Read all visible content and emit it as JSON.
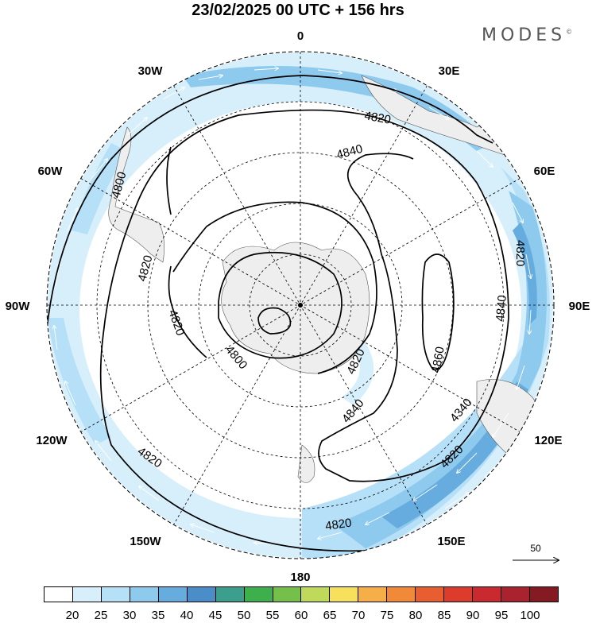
{
  "header": {
    "title": "23/02/2025  00 UTC  + 156 hrs",
    "brand": "MODES",
    "brand_mark": "©"
  },
  "longitude_labels": [
    "0",
    "30E",
    "60E",
    "90E",
    "120E",
    "150E",
    "180",
    "150W",
    "120W",
    "90W",
    "60W",
    "30W"
  ],
  "contour_labels": [
    "4820",
    "4840",
    "4800",
    "4800",
    "4820",
    "4820",
    "4820",
    "4840",
    "4820",
    "4860",
    "4840",
    "4340",
    "4820",
    "4820",
    "4820"
  ],
  "vector_scale": {
    "label": "50"
  },
  "colorbar": {
    "ticks": [
      "20",
      "25",
      "30",
      "35",
      "40",
      "45",
      "50",
      "55",
      "60",
      "65",
      "70",
      "75",
      "80",
      "85",
      "90",
      "95",
      "100"
    ],
    "colors": [
      "#ffffff",
      "#d6effb",
      "#b5e0f7",
      "#8ec9ee",
      "#67acde",
      "#4b8dc8",
      "#3c9e8d",
      "#3eaf4d",
      "#75c04b",
      "#bfd95a",
      "#f7e05b",
      "#f6ae48",
      "#f08a38",
      "#e85e30",
      "#dd3b2c",
      "#c92a30",
      "#a8232d",
      "#861a23"
    ]
  },
  "map_colors": {
    "land": "#eeeeee",
    "jet_light": "#d6effb",
    "jet_mid": "#b5e0f7",
    "jet_strong": "#8ec9ee",
    "jet_max": "#67acde"
  }
}
